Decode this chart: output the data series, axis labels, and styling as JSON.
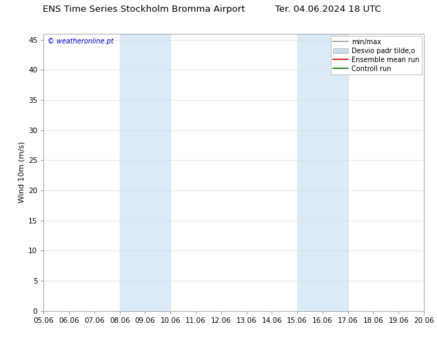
{
  "title_left": "ENS Time Series Stockholm Bromma Airport",
  "title_right": "Ter. 04.06.2024 18 UTC",
  "ylabel": "Wind 10m (m/s)",
  "xlabel_ticks": [
    "05.06",
    "06.06",
    "07.06",
    "08.06",
    "09.06",
    "10.06",
    "11.06",
    "12.06",
    "13.06",
    "14.06",
    "15.06",
    "16.06",
    "17.06",
    "18.06",
    "19.06",
    "20.06"
  ],
  "xlim": [
    0,
    15
  ],
  "ylim": [
    0,
    46
  ],
  "yticks": [
    0,
    5,
    10,
    15,
    20,
    25,
    30,
    35,
    40,
    45
  ],
  "shaded_bands": [
    {
      "xstart": 3,
      "xend": 5,
      "color": "#daeaf7"
    },
    {
      "xstart": 10,
      "xend": 12,
      "color": "#daeaf7"
    }
  ],
  "watermark": "© weatheronline.pt",
  "watermark_color": "#0000bb",
  "legend_entries": [
    {
      "label": "min/max",
      "color": "#999999",
      "lw": 1.2,
      "ls": "-",
      "type": "line"
    },
    {
      "label": "Desvio padr tilde;o",
      "color": "#ccddee",
      "lw": 8,
      "ls": "-",
      "type": "patch"
    },
    {
      "label": "Ensemble mean run",
      "color": "#dd0000",
      "lw": 1.2,
      "ls": "-",
      "type": "line"
    },
    {
      "label": "Controll run",
      "color": "#007700",
      "lw": 1.2,
      "ls": "-",
      "type": "line"
    }
  ],
  "bg_color": "#ffffff",
  "plot_bg_color": "#ffffff",
  "grid_color": "#dddddd",
  "tick_label_fontsize": 7.5,
  "title_fontsize": 9.5,
  "ylabel_fontsize": 8,
  "legend_fontsize": 7
}
